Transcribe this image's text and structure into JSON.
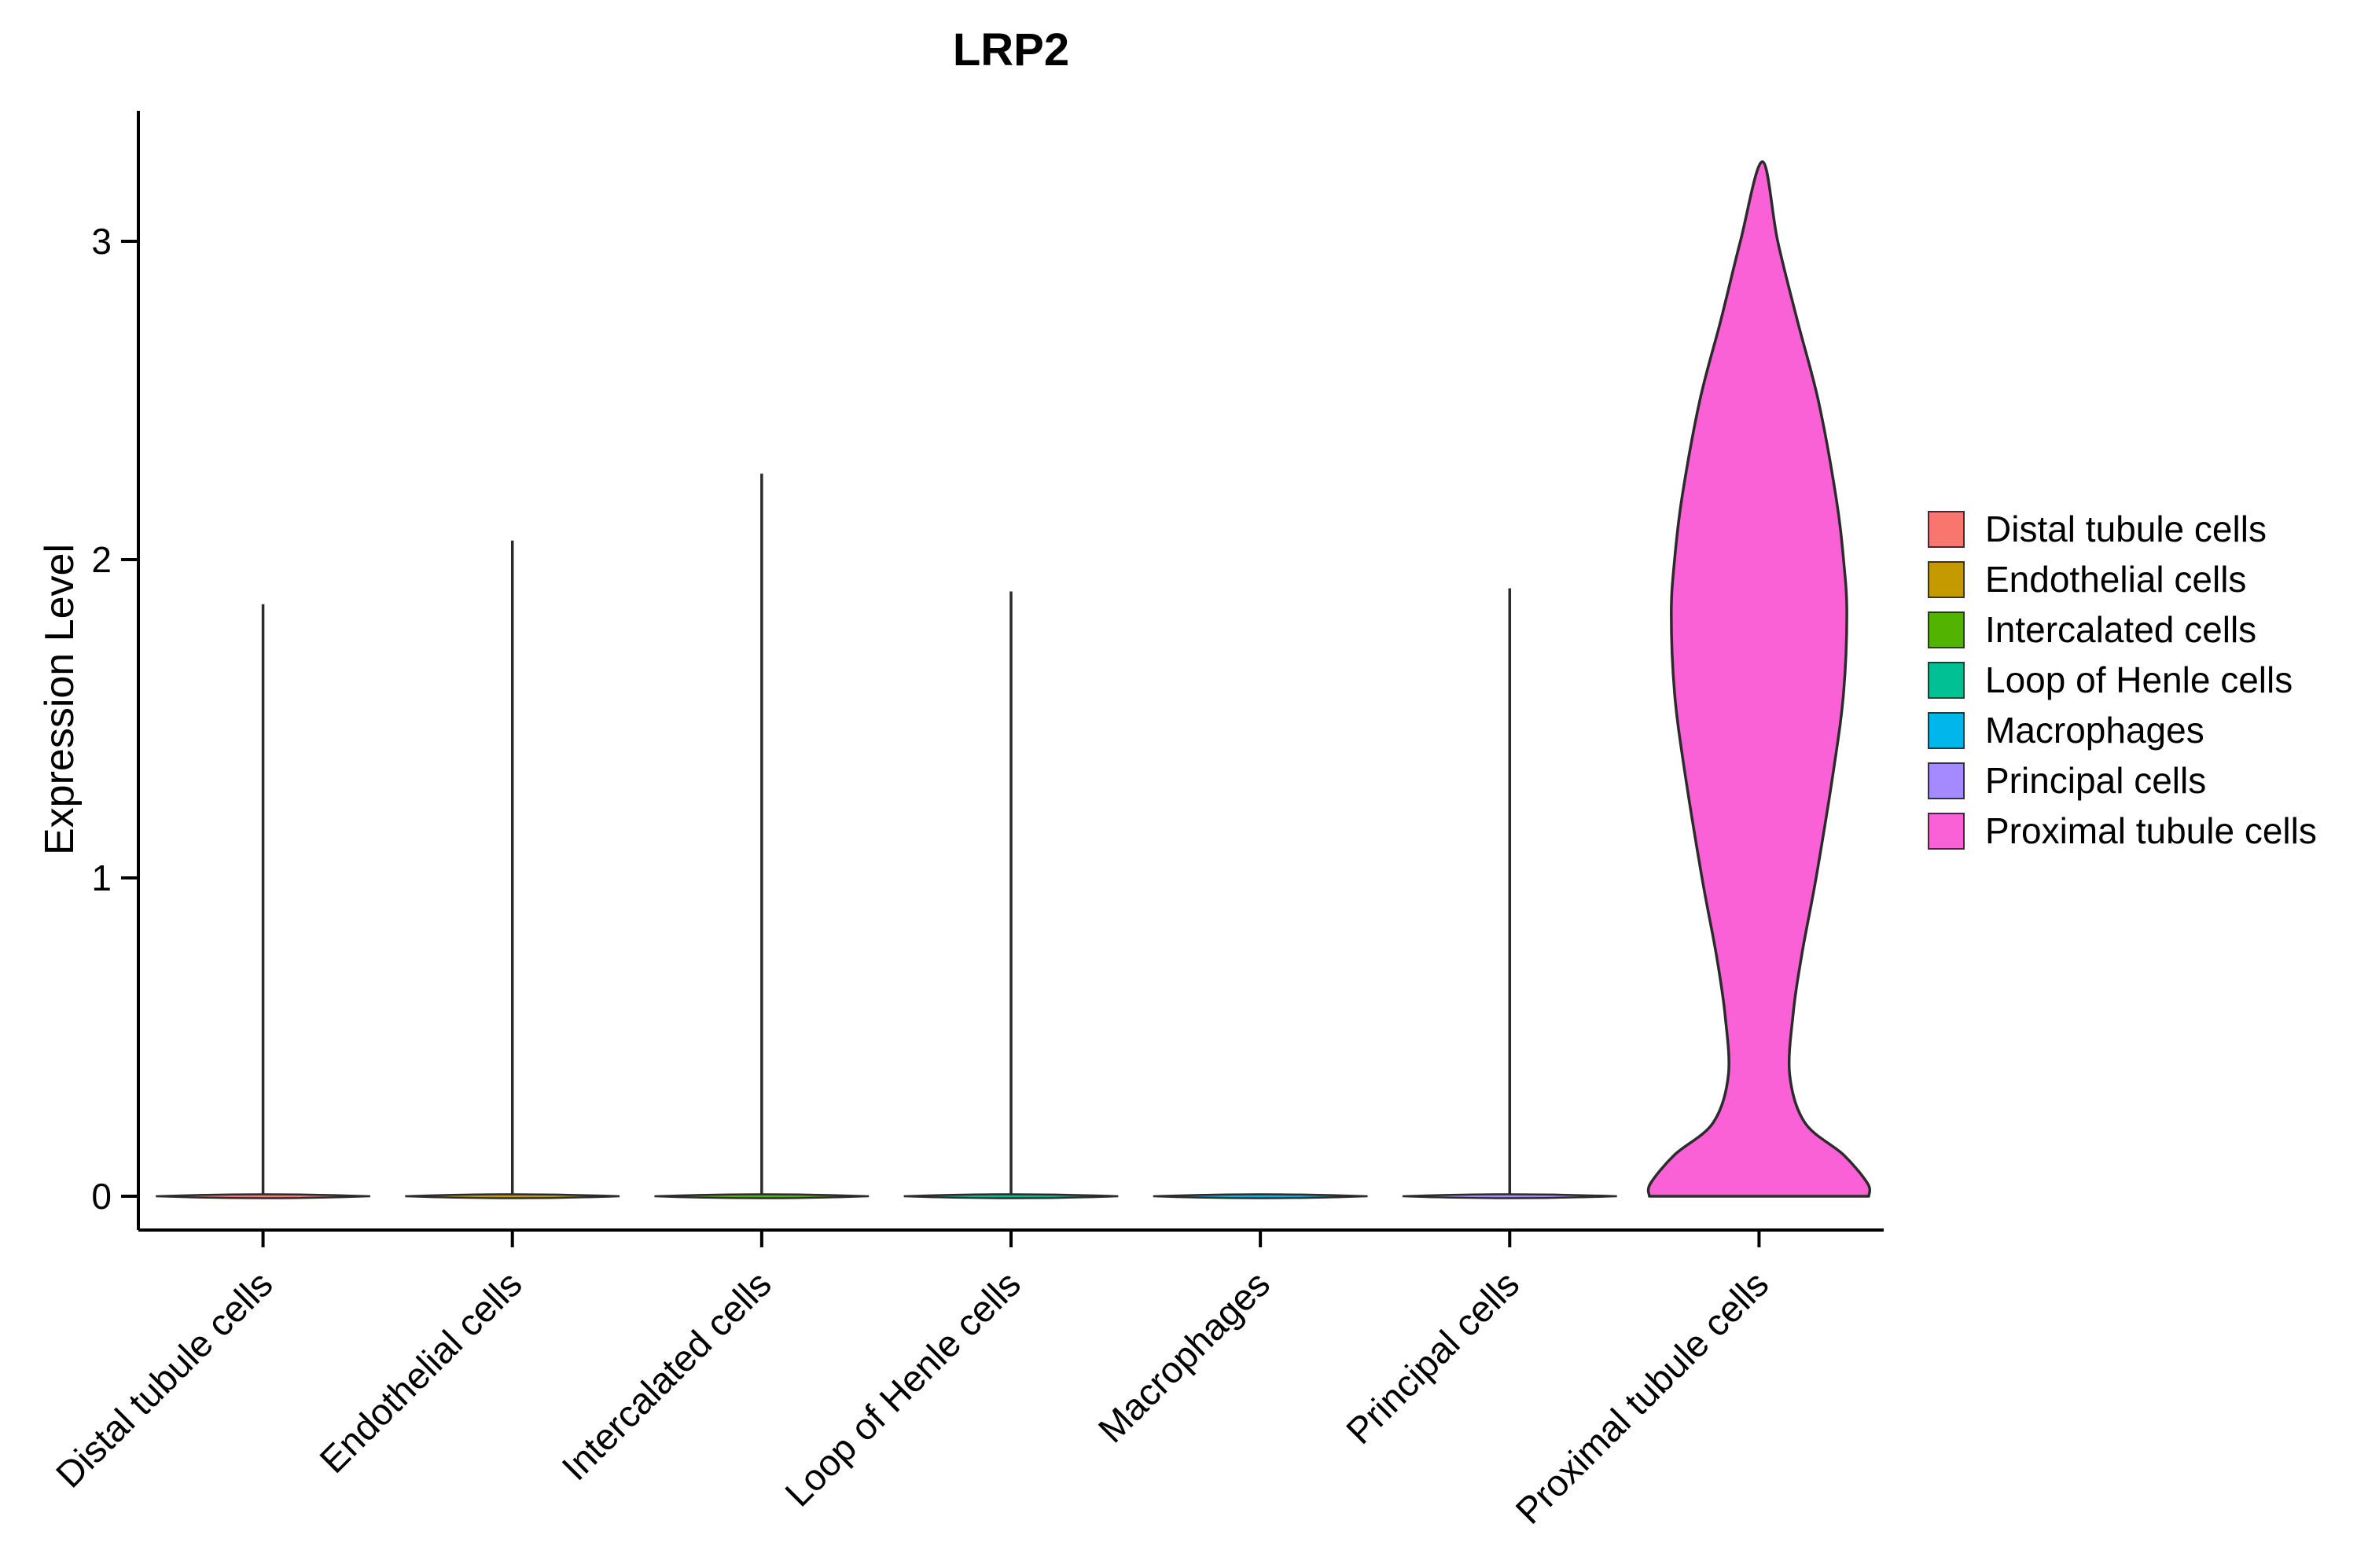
{
  "chart_data": {
    "type": "violin",
    "title": "LRP2",
    "ylabel": "Expression Level",
    "yticks": [
      0,
      1,
      2,
      3
    ],
    "ylim": [
      0,
      3.41
    ],
    "grid": false,
    "legend_position": "right",
    "categories": [
      "Distal tubule cells",
      "Endothelial cells",
      "Intercalated cells",
      "Loop of Henle cells",
      "Macrophages",
      "Principal cells",
      "Proximal tubule cells"
    ],
    "series": [
      {
        "name": "Distal tubule cells",
        "color": "#F8766D",
        "shape": "spike",
        "max_expression": 1.86
      },
      {
        "name": "Endothelial cells",
        "color": "#C49A00",
        "shape": "spike",
        "max_expression": 2.06
      },
      {
        "name": "Intercalated cells",
        "color": "#53B400",
        "shape": "spike",
        "max_expression": 2.27
      },
      {
        "name": "Loop of Henle cells",
        "color": "#00C094",
        "shape": "spike",
        "max_expression": 1.9
      },
      {
        "name": "Macrophages",
        "color": "#00B6EB",
        "shape": "flat",
        "max_expression": 0
      },
      {
        "name": "Principal cells",
        "color": "#A58AFF",
        "shape": "spike",
        "max_expression": 1.91
      },
      {
        "name": "Proximal tubule cells",
        "color": "#FB61D7",
        "shape": "violin",
        "max_expression": 3.25,
        "profile": [
          [
            0.0,
            1.0
          ],
          [
            0.04,
            0.99
          ],
          [
            0.13,
            0.77
          ],
          [
            0.23,
            0.42
          ],
          [
            0.38,
            0.28
          ],
          [
            0.57,
            0.31
          ],
          [
            0.76,
            0.39
          ],
          [
            1.0,
            0.52
          ],
          [
            1.34,
            0.68
          ],
          [
            1.58,
            0.77
          ],
          [
            1.83,
            0.8
          ],
          [
            2.0,
            0.77
          ],
          [
            2.2,
            0.7
          ],
          [
            2.5,
            0.54
          ],
          [
            2.75,
            0.35
          ],
          [
            3.0,
            0.17
          ],
          [
            3.25,
            0.03
          ]
        ]
      }
    ],
    "legend": [
      {
        "label": "Distal tubule cells",
        "color": "#F8766D"
      },
      {
        "label": "Endothelial cells",
        "color": "#C49A00"
      },
      {
        "label": "Intercalated cells",
        "color": "#53B400"
      },
      {
        "label": "Loop of Henle cells",
        "color": "#00C094"
      },
      {
        "label": "Macrophages",
        "color": "#00B6EB"
      },
      {
        "label": "Principal cells",
        "color": "#A58AFF"
      },
      {
        "label": "Proximal tubule cells",
        "color": "#FB61D7"
      }
    ]
  }
}
